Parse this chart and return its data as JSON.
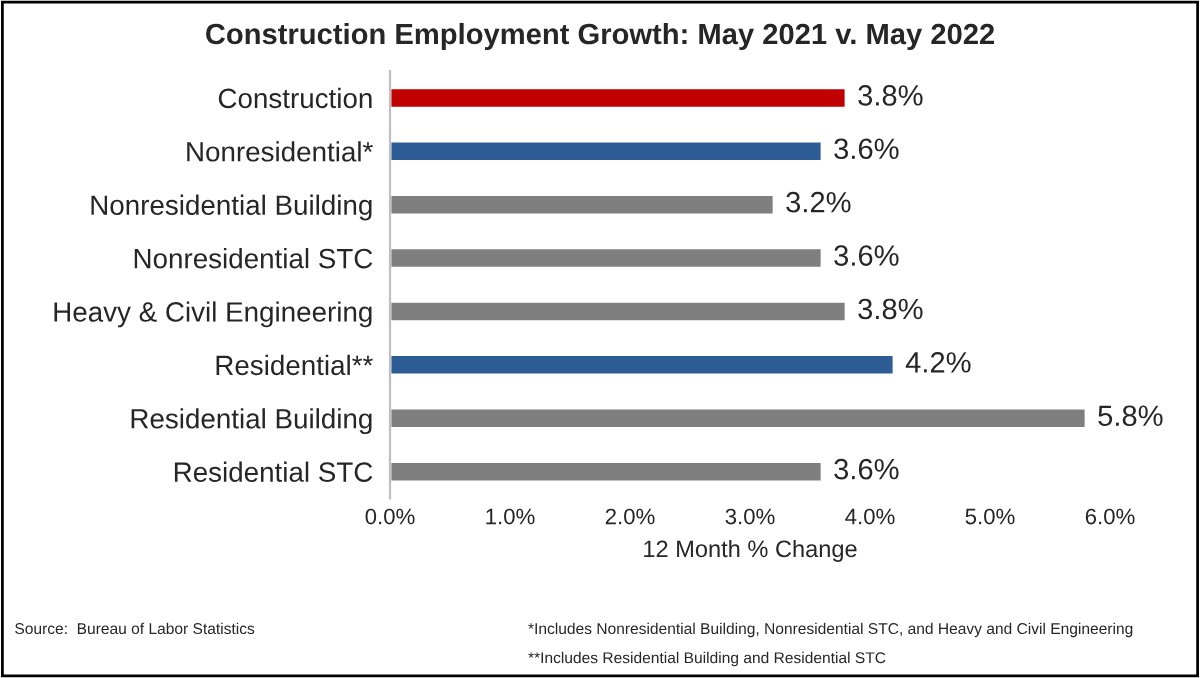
{
  "chart_data": {
    "type": "bar",
    "orientation": "horizontal",
    "title": "Construction Employment Growth: May 2021 v. May 2022",
    "xlabel": "12 Month % Change",
    "categories": [
      "Construction",
      "Nonresidential*",
      "Nonresidential Building",
      "Nonresidential STC",
      "Heavy & Civil Engineering",
      "Residential**",
      "Residential Building",
      "Residential STC"
    ],
    "values": [
      3.8,
      3.6,
      3.2,
      3.6,
      3.8,
      4.2,
      5.8,
      3.6
    ],
    "colors": [
      "#c00000",
      "#2e5d96",
      "#7f7f7f",
      "#7f7f7f",
      "#7f7f7f",
      "#2e5d96",
      "#7f7f7f",
      "#7f7f7f"
    ],
    "value_labels": [
      "3.8%",
      "3.6%",
      "3.2%",
      "3.6%",
      "3.8%",
      "4.2%",
      "5.8%",
      "3.6%"
    ],
    "xlim": [
      0,
      6
    ],
    "xticks": [
      {
        "value": 0,
        "label": "0.0%"
      },
      {
        "value": 1,
        "label": "1.0%"
      },
      {
        "value": 2,
        "label": "2.0%"
      },
      {
        "value": 3,
        "label": "3.0%"
      },
      {
        "value": 4,
        "label": "4.0%"
      },
      {
        "value": 5,
        "label": "5.0%"
      },
      {
        "value": 6,
        "label": "6.0%"
      }
    ],
    "grid": false,
    "legend": false,
    "annotations": [
      "Source:  Bureau of Labor Statistics",
      "*Includes Nonresidential Building, Nonresidential STC, and Heavy and Civil Engineering",
      "**Includes Residential Building and Residential STC"
    ]
  }
}
